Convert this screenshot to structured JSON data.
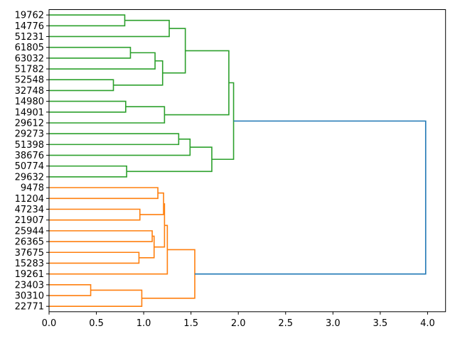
{
  "chart_data": {
    "type": "dendrogram",
    "title": "",
    "xlabel": "",
    "ylabel": "",
    "orientation": "left-leaves-root-right",
    "grid": false,
    "legend": null,
    "xlim": [
      0,
      4.19
    ],
    "xticks": [
      {
        "value": 0.0,
        "label": "0.0"
      },
      {
        "value": 0.5,
        "label": "0.5"
      },
      {
        "value": 1.0,
        "label": "1.0"
      },
      {
        "value": 1.5,
        "label": "1.5"
      },
      {
        "value": 2.0,
        "label": "2.0"
      },
      {
        "value": 2.5,
        "label": "2.5"
      },
      {
        "value": 3.0,
        "label": "3.0"
      },
      {
        "value": 3.5,
        "label": "3.5"
      },
      {
        "value": 4.0,
        "label": "4.0"
      }
    ],
    "leaves": [
      "19762",
      "14776",
      "51231",
      "61805",
      "63032",
      "51782",
      "52548",
      "32748",
      "14980",
      "14901",
      "29612",
      "29273",
      "51398",
      "38676",
      "50774",
      "29632",
      "9478",
      "11204",
      "47234",
      "21907",
      "25944",
      "26365",
      "37675",
      "15283",
      "19261",
      "23403",
      "30310",
      "22771"
    ],
    "colors": {
      "top_cluster": "#2ca02c",
      "bottom_cluster": "#ff7f0e",
      "root_link": "#1f77b4",
      "spine": "#000000",
      "text": "#000000"
    },
    "merges": [
      {
        "id": "g1",
        "a": "19762",
        "b": "14776",
        "dist": 0.8,
        "color": "#2ca02c"
      },
      {
        "id": "g2",
        "a": "g1",
        "b": "51231",
        "dist": 1.27,
        "color": "#2ca02c"
      },
      {
        "id": "g3",
        "a": "61805",
        "b": "63032",
        "dist": 0.86,
        "color": "#2ca02c"
      },
      {
        "id": "g4",
        "a": "g3",
        "b": "51782",
        "dist": 1.12,
        "color": "#2ca02c"
      },
      {
        "id": "g5",
        "a": "52548",
        "b": "32748",
        "dist": 0.68,
        "color": "#2ca02c"
      },
      {
        "id": "g6",
        "a": "g4",
        "b": "g5",
        "dist": 1.2,
        "color": "#2ca02c"
      },
      {
        "id": "g7",
        "a": "g2",
        "b": "g6",
        "dist": 1.44,
        "color": "#2ca02c"
      },
      {
        "id": "g8",
        "a": "14980",
        "b": "14901",
        "dist": 0.81,
        "color": "#2ca02c"
      },
      {
        "id": "g9",
        "a": "g8",
        "b": "29612",
        "dist": 1.22,
        "color": "#2ca02c"
      },
      {
        "id": "g10",
        "a": "g7",
        "b": "g9",
        "dist": 1.9,
        "color": "#2ca02c"
      },
      {
        "id": "g11",
        "a": "29273",
        "b": "51398",
        "dist": 1.37,
        "color": "#2ca02c"
      },
      {
        "id": "g12",
        "a": "g11",
        "b": "38676",
        "dist": 1.49,
        "color": "#2ca02c"
      },
      {
        "id": "g13",
        "a": "50774",
        "b": "29632",
        "dist": 0.82,
        "color": "#2ca02c"
      },
      {
        "id": "g14",
        "a": "g12",
        "b": "g13",
        "dist": 1.72,
        "color": "#2ca02c"
      },
      {
        "id": "g15",
        "a": "g10",
        "b": "g14",
        "dist": 1.95,
        "color": "#2ca02c"
      },
      {
        "id": "o1",
        "a": "9478",
        "b": "11204",
        "dist": 1.15,
        "color": "#ff7f0e"
      },
      {
        "id": "o2",
        "a": "47234",
        "b": "21907",
        "dist": 0.96,
        "color": "#ff7f0e"
      },
      {
        "id": "o3",
        "a": "o1",
        "b": "o2",
        "dist": 1.21,
        "color": "#ff7f0e"
      },
      {
        "id": "o4",
        "a": "25944",
        "b": "26365",
        "dist": 1.09,
        "color": "#ff7f0e"
      },
      {
        "id": "o5",
        "a": "37675",
        "b": "15283",
        "dist": 0.95,
        "color": "#ff7f0e"
      },
      {
        "id": "o6",
        "a": "o4",
        "b": "o5",
        "dist": 1.11,
        "color": "#ff7f0e"
      },
      {
        "id": "o7",
        "a": "o3",
        "b": "o6",
        "dist": 1.22,
        "color": "#ff7f0e"
      },
      {
        "id": "o8",
        "a": "o7",
        "b": "19261",
        "dist": 1.25,
        "color": "#ff7f0e"
      },
      {
        "id": "o9",
        "a": "23403",
        "b": "30310",
        "dist": 0.44,
        "color": "#ff7f0e"
      },
      {
        "id": "o10",
        "a": "o9",
        "b": "22771",
        "dist": 0.98,
        "color": "#ff7f0e"
      },
      {
        "id": "o11",
        "a": "o8",
        "b": "o10",
        "dist": 1.54,
        "color": "#ff7f0e"
      },
      {
        "id": "r1",
        "a": "g15",
        "b": "o11",
        "dist": 3.98,
        "color": "#1f77b4"
      }
    ]
  }
}
